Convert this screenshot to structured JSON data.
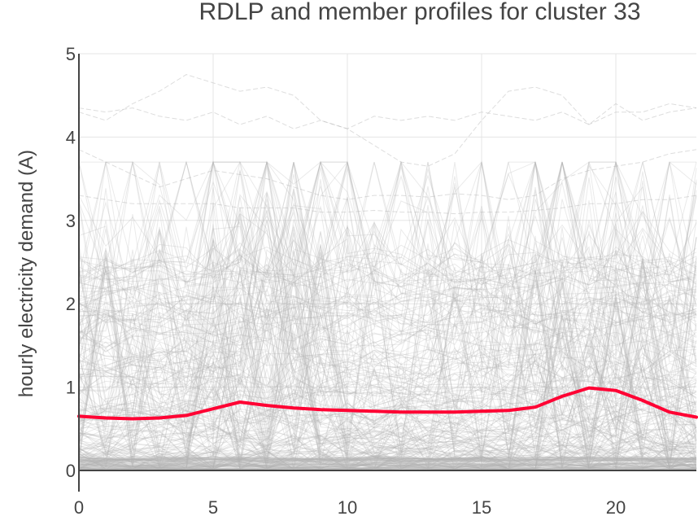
{
  "chart_data": {
    "type": "line",
    "title": "RDLP and member profiles for cluster 33",
    "xlabel": "",
    "ylabel": "hourly electricity demand (A)",
    "xlim": [
      0,
      23
    ],
    "ylim": [
      -0.2,
      5
    ],
    "x_ticks": [
      0,
      5,
      10,
      15,
      20
    ],
    "y_ticks": [
      0,
      1,
      2,
      3,
      4,
      5
    ],
    "grid": true,
    "legend": "none",
    "x": [
      0,
      1,
      2,
      3,
      4,
      5,
      6,
      7,
      8,
      9,
      10,
      11,
      12,
      13,
      14,
      15,
      16,
      17,
      18,
      19,
      20,
      21,
      22,
      23
    ],
    "series": [
      {
        "role": "rdlp",
        "color": "#ff0033",
        "values": [
          0.65,
          0.63,
          0.62,
          0.63,
          0.66,
          0.74,
          0.82,
          0.78,
          0.75,
          0.73,
          0.72,
          0.71,
          0.7,
          0.7,
          0.7,
          0.71,
          0.72,
          0.76,
          0.89,
          0.99,
          0.96,
          0.84,
          0.7,
          0.64
        ]
      },
      {
        "role": "member",
        "color": "#b3b3b3",
        "values": [
          4.35,
          4.3,
          4.35,
          4.25,
          4.2,
          4.3,
          4.15,
          4.25,
          4.1,
          4.2,
          4.1,
          4.25,
          4.2,
          4.25,
          4.2,
          4.3,
          4.25,
          4.2,
          4.3,
          4.15,
          4.4,
          4.2,
          4.3,
          4.35
        ]
      },
      {
        "role": "member",
        "color": "#b3b3b3",
        "values": [
          4.3,
          4.2,
          4.4,
          4.55,
          4.75,
          4.65,
          4.55,
          4.6,
          4.5,
          4.2,
          4.1,
          3.9,
          3.7,
          3.65,
          3.8,
          4.2,
          4.55,
          4.6,
          4.5,
          4.15,
          4.3,
          4.3,
          4.4,
          4.35
        ]
      },
      {
        "role": "member",
        "color": "#b3b3b3",
        "values": [
          3.85,
          3.7,
          3.55,
          3.4,
          3.5,
          3.6,
          3.55,
          3.5,
          3.4,
          3.3,
          3.25,
          3.3,
          3.3,
          3.28,
          3.32,
          3.3,
          3.25,
          3.3,
          3.5,
          3.6,
          3.65,
          3.7,
          3.8,
          3.85
        ]
      },
      {
        "role": "member",
        "color": "#b3b3b3",
        "values": [
          3.3,
          3.25,
          3.2,
          3.2,
          3.2,
          3.2,
          3.15,
          3.15,
          3.15,
          3.1,
          3.1,
          3.12,
          3.1,
          3.1,
          3.08,
          3.1,
          3.1,
          3.12,
          3.15,
          3.2,
          3.2,
          3.25,
          3.25,
          3.3
        ]
      }
    ]
  }
}
